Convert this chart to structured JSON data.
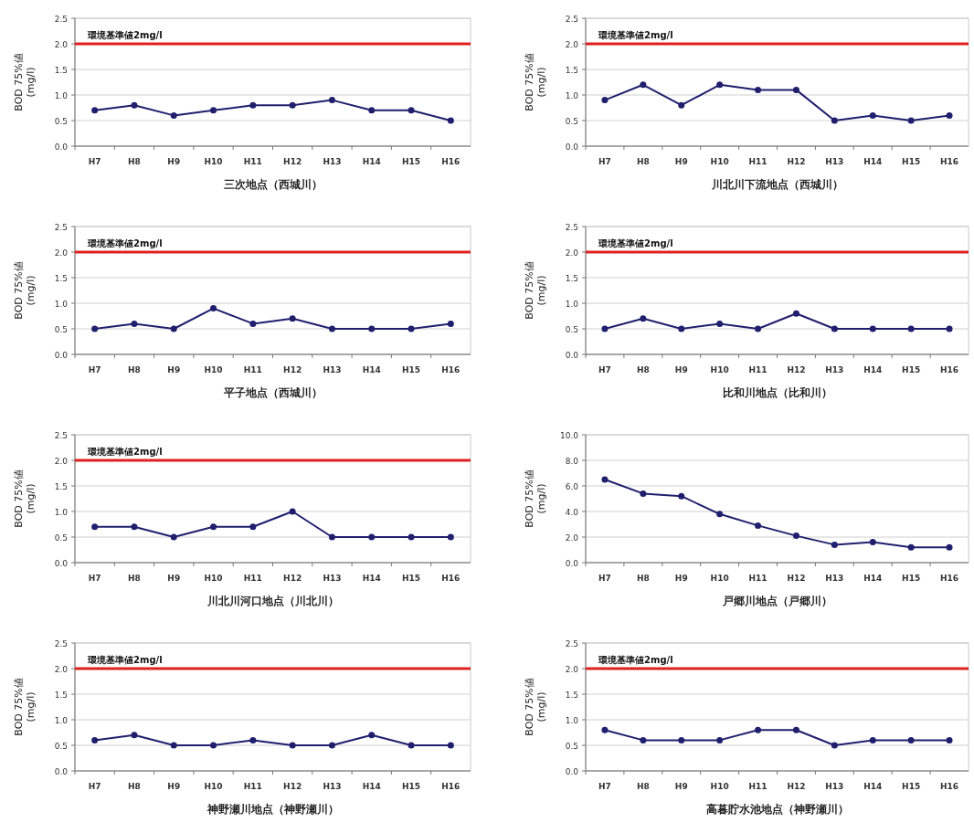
{
  "chart_data": [
    {
      "type": "line",
      "xlabel": "三次地点（西城川）",
      "ylabel": "BOD 75%値\n(mg/l)",
      "categories": [
        "H7",
        "H8",
        "H9",
        "H10",
        "H11",
        "H12",
        "H13",
        "H14",
        "H15",
        "H16"
      ],
      "series": [
        {
          "color": "#1f1f6e",
          "values": [
            0.7,
            0.8,
            0.6,
            0.7,
            0.8,
            0.8,
            0.9,
            0.7,
            0.7,
            0.5
          ]
        }
      ],
      "ylim": [
        0,
        2.5
      ],
      "yticks": [
        {
          "value": 0,
          "label": "0.0"
        },
        {
          "value": 0.5,
          "label": "0.5"
        },
        {
          "value": 1,
          "label": "1.0"
        },
        {
          "value": 1.5,
          "label": "1.5"
        },
        {
          "value": 2,
          "label": "2.0"
        },
        {
          "value": 2.5,
          "label": "2.5"
        }
      ],
      "grid": "y",
      "marker": "circle",
      "ref_lines": [
        {
          "axis": "y",
          "value": 2,
          "label": "環境基準値2mg/l",
          "color": "#e02020"
        }
      ]
    },
    {
      "type": "line",
      "xlabel": "川北川下流地点（西城川）",
      "ylabel": "BOD 75%値\n(mg/l)",
      "categories": [
        "H7",
        "H8",
        "H9",
        "H10",
        "H11",
        "H12",
        "H13",
        "H14",
        "H15",
        "H16"
      ],
      "series": [
        {
          "color": "#1f1f6e",
          "values": [
            0.9,
            1.2,
            0.8,
            1.2,
            1.1,
            1.1,
            0.5,
            0.6,
            0.5,
            0.6
          ]
        }
      ],
      "ylim": [
        0,
        2.5
      ],
      "yticks": [
        {
          "value": 0,
          "label": "0.0"
        },
        {
          "value": 0.5,
          "label": "0.5"
        },
        {
          "value": 1,
          "label": "1.0"
        },
        {
          "value": 1.5,
          "label": "1.5"
        },
        {
          "value": 2,
          "label": "2.0"
        },
        {
          "value": 2.5,
          "label": "2.5"
        }
      ],
      "grid": "y",
      "marker": "circle",
      "ref_lines": [
        {
          "axis": "y",
          "value": 2,
          "label": "環境基準値2mg/l",
          "color": "#e02020"
        }
      ]
    },
    {
      "type": "line",
      "xlabel": "平子地点（西城川）",
      "ylabel": "BOD 75%値\n(mg/l)",
      "categories": [
        "H7",
        "H8",
        "H9",
        "H10",
        "H11",
        "H12",
        "H13",
        "H14",
        "H15",
        "H16"
      ],
      "series": [
        {
          "color": "#1f1f6e",
          "values": [
            0.5,
            0.6,
            0.5,
            0.9,
            0.6,
            0.7,
            0.5,
            0.5,
            0.5,
            0.6
          ]
        }
      ],
      "ylim": [
        0,
        2.5
      ],
      "yticks": [
        {
          "value": 0,
          "label": "0.0"
        },
        {
          "value": 0.5,
          "label": "0.5"
        },
        {
          "value": 1,
          "label": "1.0"
        },
        {
          "value": 1.5,
          "label": "1.5"
        },
        {
          "value": 2,
          "label": "2.0"
        },
        {
          "value": 2.5,
          "label": "2.5"
        }
      ],
      "grid": "y",
      "marker": "circle",
      "ref_lines": [
        {
          "axis": "y",
          "value": 2,
          "label": "環境基準値2mg/l",
          "color": "#e02020"
        }
      ]
    },
    {
      "type": "line",
      "xlabel": "比和川地点（比和川）",
      "ylabel": "BOD 75%値\n(mg/l)",
      "categories": [
        "H7",
        "H8",
        "H9",
        "H10",
        "H11",
        "H12",
        "H13",
        "H14",
        "H15",
        "H16"
      ],
      "series": [
        {
          "color": "#1f1f6e",
          "values": [
            0.5,
            0.7,
            0.5,
            0.6,
            0.5,
            0.8,
            0.5,
            0.5,
            0.5,
            0.5
          ]
        }
      ],
      "ylim": [
        0,
        2.5
      ],
      "yticks": [
        {
          "value": 0,
          "label": "0.0"
        },
        {
          "value": 0.5,
          "label": "0.5"
        },
        {
          "value": 1,
          "label": "1.0"
        },
        {
          "value": 1.5,
          "label": "1.5"
        },
        {
          "value": 2,
          "label": "2.0"
        },
        {
          "value": 2.5,
          "label": "2.5"
        }
      ],
      "grid": "y",
      "marker": "circle",
      "ref_lines": [
        {
          "axis": "y",
          "value": 2,
          "label": "環境基準値2mg/l",
          "color": "#e02020"
        }
      ]
    },
    {
      "type": "line",
      "xlabel": "川北川河口地点（川北川）",
      "ylabel": "BOD 75%値\n(mg/l)",
      "categories": [
        "H7",
        "H8",
        "H9",
        "H10",
        "H11",
        "H12",
        "H13",
        "H14",
        "H15",
        "H16"
      ],
      "series": [
        {
          "color": "#1f1f6e",
          "values": [
            0.7,
            0.7,
            0.5,
            0.7,
            0.7,
            1.0,
            0.5,
            0.5,
            0.5,
            0.5
          ]
        }
      ],
      "ylim": [
        0,
        2.5
      ],
      "yticks": [
        {
          "value": 0,
          "label": "0.0"
        },
        {
          "value": 0.5,
          "label": "0.5"
        },
        {
          "value": 1,
          "label": "1.0"
        },
        {
          "value": 1.5,
          "label": "1.5"
        },
        {
          "value": 2,
          "label": "2.0"
        },
        {
          "value": 2.5,
          "label": "2.5"
        }
      ],
      "grid": "y",
      "marker": "circle",
      "ref_lines": [
        {
          "axis": "y",
          "value": 2,
          "label": "環境基準値2mg/l",
          "color": "#e02020"
        }
      ]
    },
    {
      "type": "line",
      "xlabel": "戸郷川地点（戸郷川）",
      "ylabel": "BOD 75%値\n(mg/l)",
      "categories": [
        "H7",
        "H8",
        "H9",
        "H10",
        "H11",
        "H12",
        "H13",
        "H14",
        "H15",
        "H16"
      ],
      "series": [
        {
          "color": "#1f1f6e",
          "values": [
            6.5,
            5.4,
            5.2,
            3.8,
            2.9,
            2.1,
            1.4,
            1.6,
            1.2,
            1.2
          ]
        }
      ],
      "ylim": [
        0,
        10
      ],
      "yticks": [
        {
          "value": 0,
          "label": "0.0"
        },
        {
          "value": 2,
          "label": "2.0"
        },
        {
          "value": 4,
          "label": "4.0"
        },
        {
          "value": 6,
          "label": "6.0"
        },
        {
          "value": 8,
          "label": "8.0"
        },
        {
          "value": 10,
          "label": "10.0"
        }
      ],
      "grid": "y",
      "marker": "circle"
    },
    {
      "type": "line",
      "xlabel": "神野瀬川地点（神野瀬川）",
      "ylabel": "BOD 75%値\n(mg/l)",
      "categories": [
        "H7",
        "H8",
        "H9",
        "H10",
        "H11",
        "H12",
        "H13",
        "H14",
        "H15",
        "H16"
      ],
      "series": [
        {
          "color": "#1f1f6e",
          "values": [
            0.6,
            0.7,
            0.5,
            0.5,
            0.6,
            0.5,
            0.5,
            0.7,
            0.5,
            0.5
          ]
        }
      ],
      "ylim": [
        0,
        2.5
      ],
      "yticks": [
        {
          "value": 0,
          "label": "0.0"
        },
        {
          "value": 0.5,
          "label": "0.5"
        },
        {
          "value": 1,
          "label": "1.0"
        },
        {
          "value": 1.5,
          "label": "1.5"
        },
        {
          "value": 2,
          "label": "2.0"
        },
        {
          "value": 2.5,
          "label": "2.5"
        }
      ],
      "grid": "y",
      "marker": "circle",
      "ref_lines": [
        {
          "axis": "y",
          "value": 2,
          "label": "環境基準値2mg/l",
          "color": "#e02020"
        }
      ]
    },
    {
      "type": "line",
      "xlabel": "高暮貯水池地点（神野瀬川）",
      "ylabel": "BOD 75%値\n(mg/l)",
      "categories": [
        "H7",
        "H8",
        "H9",
        "H10",
        "H11",
        "H12",
        "H13",
        "H14",
        "H15",
        "H16"
      ],
      "series": [
        {
          "color": "#1f1f6e",
          "values": [
            0.8,
            0.6,
            0.6,
            0.6,
            0.8,
            0.8,
            0.5,
            0.6,
            0.6,
            0.6
          ]
        }
      ],
      "ylim": [
        0,
        2.5
      ],
      "yticks": [
        {
          "value": 0,
          "label": "0.0"
        },
        {
          "value": 0.5,
          "label": "0.5"
        },
        {
          "value": 1,
          "label": "1.0"
        },
        {
          "value": 1.5,
          "label": "1.5"
        },
        {
          "value": 2,
          "label": "2.0"
        },
        {
          "value": 2.5,
          "label": "2.5"
        }
      ],
      "grid": "y",
      "marker": "circle",
      "ref_lines": [
        {
          "axis": "y",
          "value": 2,
          "label": "環境基準値2mg/l",
          "color": "#e02020"
        }
      ]
    }
  ]
}
